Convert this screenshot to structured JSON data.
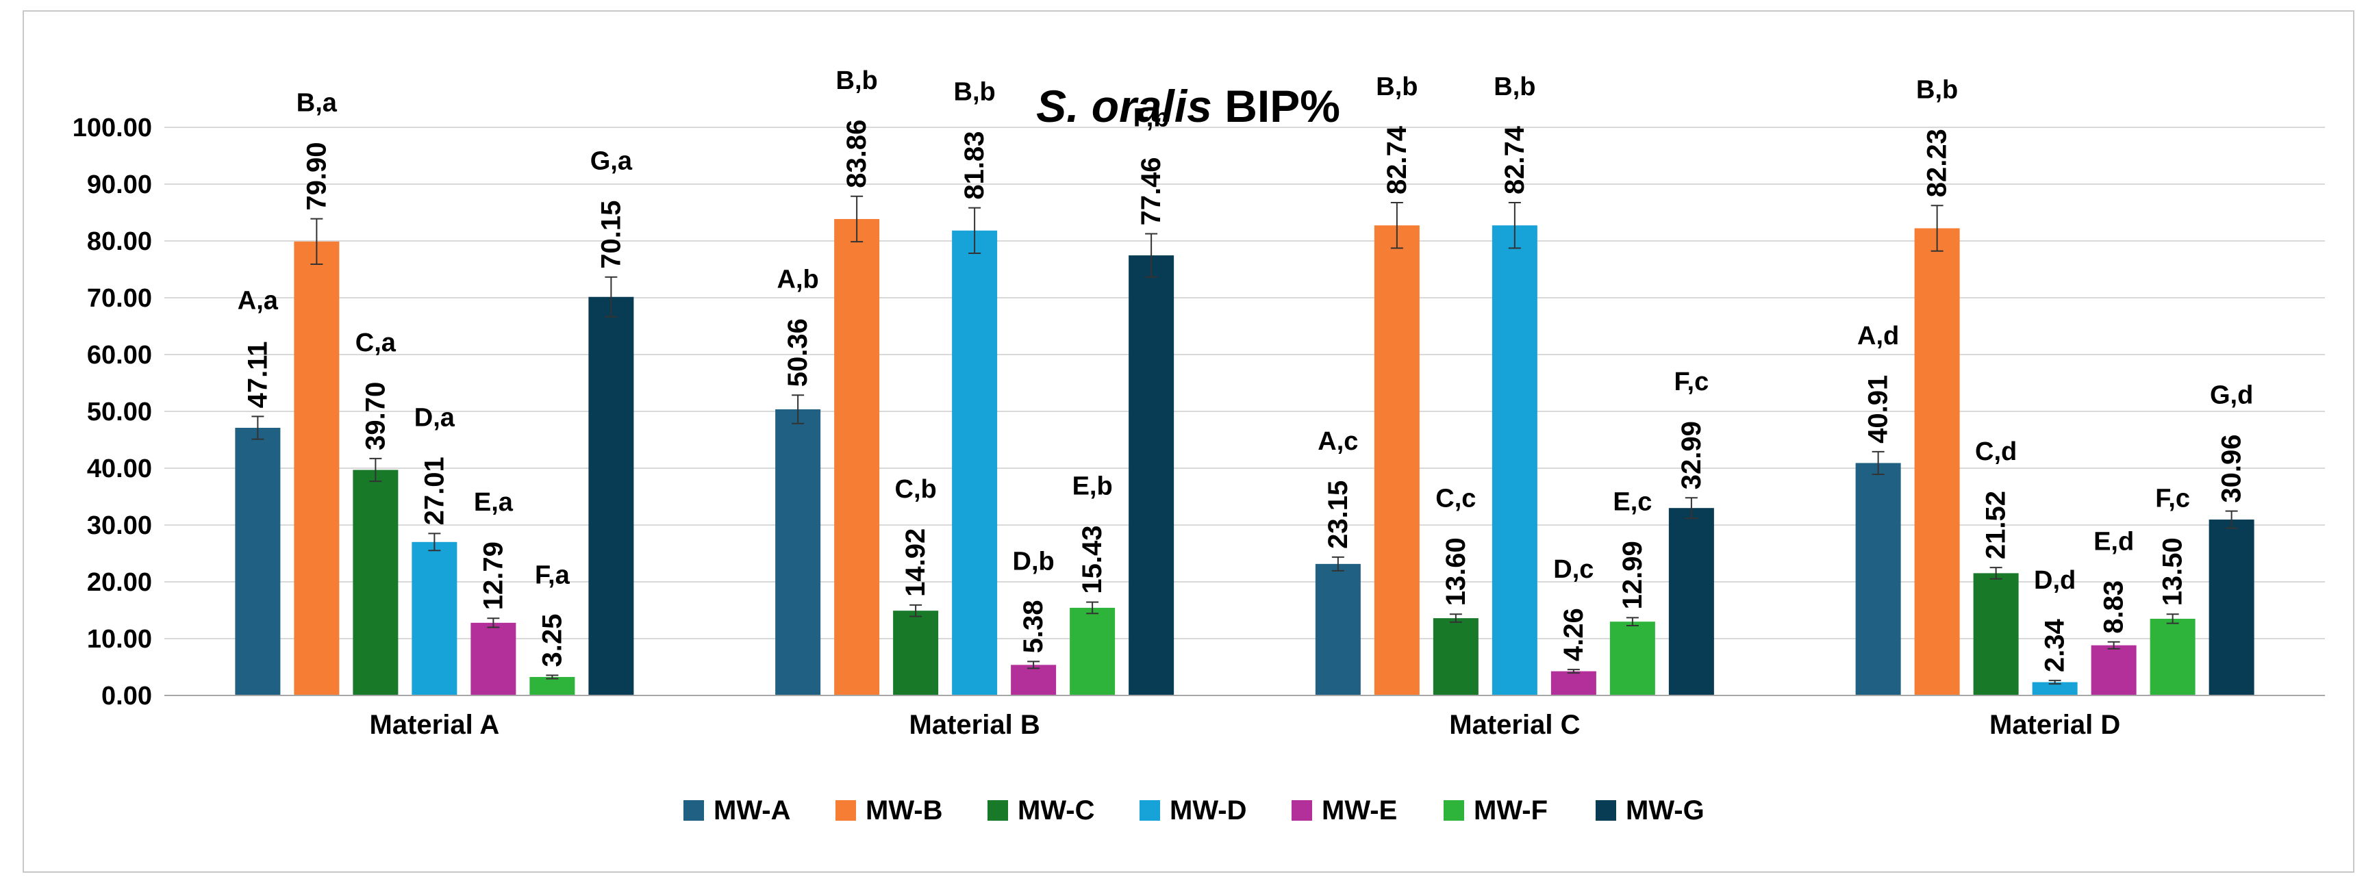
{
  "chart_data": {
    "type": "bar",
    "title": {
      "italic": "S. oralis",
      "normal": " BIP%"
    },
    "xlabel": "",
    "ylabel": "",
    "ylim": [
      0,
      100
    ],
    "yticks": [
      "0.00",
      "10.00",
      "20.00",
      "30.00",
      "40.00",
      "50.00",
      "60.00",
      "70.00",
      "80.00",
      "90.00",
      "100.00"
    ],
    "grid": true,
    "legend_position": "bottom",
    "categories": [
      "Material A",
      "Material B",
      "Material C",
      "Material D"
    ],
    "series": [
      {
        "name": "MW-A",
        "color": "#1F6083",
        "values": [
          47.11,
          50.36,
          23.15,
          40.91
        ],
        "labels": [
          "47.11",
          "50.36",
          "23.15",
          "40.91"
        ],
        "errors": [
          2.0,
          2.5,
          1.2,
          2.0
        ],
        "letters": [
          "A,a",
          "A,b",
          "A,c",
          "A,d"
        ]
      },
      {
        "name": "MW-B",
        "color": "#F57E34",
        "values": [
          79.9,
          83.86,
          82.74,
          82.23
        ],
        "labels": [
          "79.90",
          "83.86",
          "82.74",
          "82.23"
        ],
        "errors": [
          4.0,
          4.0,
          4.0,
          4.0
        ],
        "letters": [
          "B,a",
          "B,b",
          "B,b",
          "B,b"
        ]
      },
      {
        "name": "MW-C",
        "color": "#187A29",
        "values": [
          39.7,
          14.92,
          13.6,
          21.52
        ],
        "labels": [
          "39.70",
          "14.92",
          "13.60",
          "21.52"
        ],
        "errors": [
          2.0,
          1.0,
          0.7,
          1.0
        ],
        "letters": [
          "C,a",
          "C,b",
          "C,c",
          "C,d"
        ]
      },
      {
        "name": "MW-D",
        "color": "#17A3D8",
        "values": [
          27.01,
          81.83,
          82.74,
          2.34
        ],
        "labels": [
          "27.01",
          "81.83",
          "82.74",
          "2.34"
        ],
        "errors": [
          1.5,
          4.0,
          4.0,
          0.3
        ],
        "letters": [
          "D,a",
          "B,b",
          "B,b",
          "D,d"
        ]
      },
      {
        "name": "MW-E",
        "color": "#B3309B",
        "values": [
          12.79,
          5.38,
          4.26,
          8.83
        ],
        "labels": [
          "12.79",
          "5.38",
          "4.26",
          "8.83"
        ],
        "errors": [
          0.8,
          0.6,
          0.3,
          0.6
        ],
        "letters": [
          "E,a",
          "D,b",
          "D,c",
          "E,d"
        ]
      },
      {
        "name": "MW-F",
        "color": "#2EB43A",
        "values": [
          3.25,
          15.43,
          12.99,
          13.5
        ],
        "labels": [
          "3.25",
          "15.43",
          "12.99",
          "13.50"
        ],
        "errors": [
          0.3,
          1.0,
          0.7,
          0.8
        ],
        "letters": [
          "F,a",
          "E,b",
          "E,c",
          "F,c"
        ]
      },
      {
        "name": "MW-G",
        "color": "#083C55",
        "values": [
          70.15,
          77.46,
          32.99,
          30.96
        ],
        "labels": [
          "70.15",
          "77.46",
          "32.99",
          "30.96"
        ],
        "errors": [
          3.5,
          3.8,
          1.8,
          1.5
        ],
        "letters": [
          "G,a",
          "F,b",
          "F,c",
          "G,d"
        ]
      }
    ]
  }
}
